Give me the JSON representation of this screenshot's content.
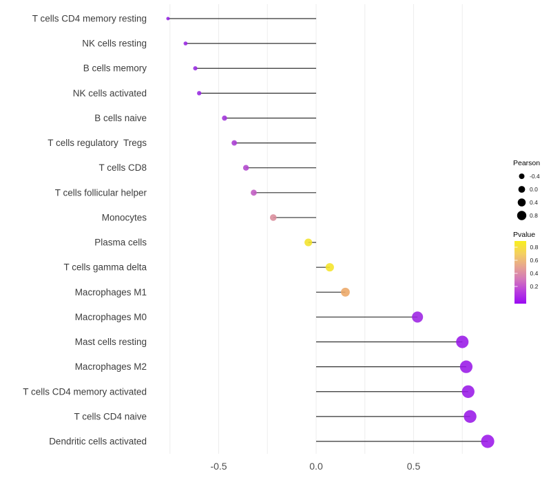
{
  "chart_data": {
    "type": "lollipop",
    "title": "",
    "xlabel": "",
    "ylabel": "",
    "xlim": [
      -0.84,
      0.97
    ],
    "grid_x": [
      -0.75,
      -0.5,
      -0.25,
      0,
      0.25,
      0.5,
      0.75
    ],
    "x_ticks": [
      -0.5,
      0.0,
      0.5
    ],
    "x_tick_labels": [
      "-0.5",
      "0.0",
      "0.5"
    ],
    "baseline_x": 0,
    "legend_position": "right",
    "points": [
      {
        "label": "T cells CD4 memory resting",
        "pearson": -0.76,
        "pvalue": 0.02,
        "color": "#9321e2"
      },
      {
        "label": "NK cells resting",
        "pearson": -0.67,
        "pvalue": 0.03,
        "color": "#9a27e2"
      },
      {
        "label": "B cells memory",
        "pearson": -0.62,
        "pvalue": 0.03,
        "color": "#9729e1"
      },
      {
        "label": "NK cells activated",
        "pearson": -0.6,
        "pvalue": 0.04,
        "color": "#9729e1"
      },
      {
        "label": "B cells naive",
        "pearson": -0.47,
        "pvalue": 0.06,
        "color": "#a133d9"
      },
      {
        "label": "T cells regulatory  Tregs",
        "pearson": -0.42,
        "pvalue": 0.08,
        "color": "#aa3bd3"
      },
      {
        "label": "T cells CD8",
        "pearson": -0.36,
        "pvalue": 0.11,
        "color": "#b145cd"
      },
      {
        "label": "T cells follicular helper",
        "pearson": -0.32,
        "pvalue": 0.16,
        "color": "#c05ac1"
      },
      {
        "label": "Monocytes",
        "pearson": -0.22,
        "pvalue": 0.38,
        "color": "#d98c9b"
      },
      {
        "label": "Plasma cells",
        "pearson": -0.04,
        "pvalue": 0.83,
        "color": "#f3e32a"
      },
      {
        "label": "T cells gamma delta",
        "pearson": 0.07,
        "pvalue": 0.79,
        "color": "#f5e428"
      },
      {
        "label": "Macrophages M1",
        "pearson": 0.15,
        "pvalue": 0.58,
        "color": "#eca767"
      },
      {
        "label": "Macrophages M0",
        "pearson": 0.52,
        "pvalue": 0.02,
        "color": "#9c22e2"
      },
      {
        "label": "Mast cells resting",
        "pearson": 0.75,
        "pvalue": 0.004,
        "color": "#9918e7"
      },
      {
        "label": "Macrophages M2",
        "pearson": 0.77,
        "pvalue": 0.003,
        "color": "#9918e7"
      },
      {
        "label": "T cells CD4 memory activated",
        "pearson": 0.78,
        "pvalue": 0.003,
        "color": "#9918e7"
      },
      {
        "label": "T cells CD4 naive",
        "pearson": 0.79,
        "pvalue": 0.002,
        "color": "#9918e7"
      },
      {
        "label": "Dendritic cells activated",
        "pearson": 0.88,
        "pvalue": 0.001,
        "color": "#9b17e9"
      }
    ]
  },
  "legend_pearson": {
    "title": "Pearson",
    "items": [
      {
        "label": "-0.4",
        "value": -0.4
      },
      {
        "label": "0.0",
        "value": 0.0
      },
      {
        "label": "0.4",
        "value": 0.4
      },
      {
        "label": "0.8",
        "value": 0.8
      }
    ]
  },
  "legend_pvalue": {
    "title": "Pvalue",
    "ticks": [
      {
        "label": "0.8",
        "value": 0.8
      },
      {
        "label": "0.6",
        "value": 0.6
      },
      {
        "label": "0.4",
        "value": 0.4
      },
      {
        "label": "0.2",
        "value": 0.2
      }
    ],
    "gradient_top_to_bottom": [
      "#f8ef1e",
      "#f4d05f",
      "#e7a68e",
      "#d57ab8",
      "#b93fdd",
      "#9a0af3"
    ]
  },
  "colors": {
    "background": "#ffffff",
    "gridline": "#ededed",
    "stem": "#303030",
    "axis_tick_text": "#4d4d4d",
    "category_text": "#3d3d3d",
    "legend_text": "#1a1a1a",
    "legend_dot": "#000000"
  }
}
